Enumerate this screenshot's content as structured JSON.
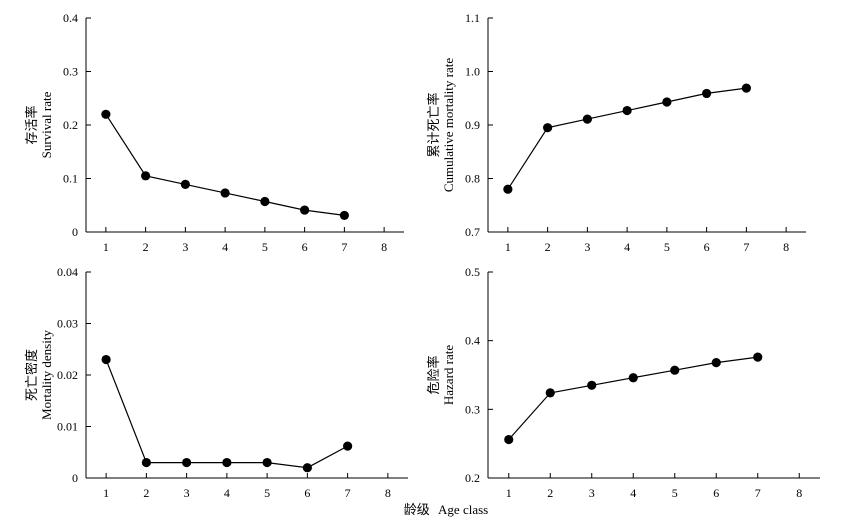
{
  "xlabel": {
    "cn": "龄级",
    "en": "Age class"
  },
  "chart_data": [
    {
      "type": "line",
      "ylabel_cn": "存活率",
      "ylabel_en": "Survival rate",
      "x": [
        1,
        2,
        3,
        4,
        5,
        6,
        7
      ],
      "values": [
        0.22,
        0.105,
        0.089,
        0.073,
        0.057,
        0.041,
        0.031
      ],
      "xlim": [
        0.5,
        8.5
      ],
      "xticks": [
        1,
        2,
        3,
        4,
        5,
        6,
        7,
        8
      ],
      "ylim": [
        0,
        0.4
      ],
      "yticks": [
        0,
        0.1,
        0.2,
        0.3,
        0.4
      ],
      "ytick_labels": [
        "0",
        "0.1",
        "0.2",
        "0.3",
        "0.4"
      ]
    },
    {
      "type": "line",
      "ylabel_cn": "累计死亡率",
      "ylabel_en": "Cumulative mortality rate",
      "x": [
        1,
        2,
        3,
        4,
        5,
        6,
        7
      ],
      "values": [
        0.78,
        0.895,
        0.911,
        0.927,
        0.943,
        0.959,
        0.969
      ],
      "xlim": [
        0.5,
        8.5
      ],
      "xticks": [
        1,
        2,
        3,
        4,
        5,
        6,
        7,
        8
      ],
      "ylim": [
        0.7,
        1.1
      ],
      "yticks": [
        0.7,
        0.8,
        0.9,
        1.0,
        1.1
      ],
      "ytick_labels": [
        "0.7",
        "0.8",
        "0.9",
        "1.0",
        "1.1"
      ]
    },
    {
      "type": "line",
      "ylabel_cn": "死亡密度",
      "ylabel_en": "Mortality density",
      "x": [
        1,
        2,
        3,
        4,
        5,
        6,
        7
      ],
      "values": [
        0.023,
        0.003,
        0.003,
        0.003,
        0.003,
        0.002,
        0.0062
      ],
      "xlim": [
        0.5,
        8.5
      ],
      "xticks": [
        1,
        2,
        3,
        4,
        5,
        6,
        7,
        8
      ],
      "ylim": [
        0,
        0.04
      ],
      "yticks": [
        0,
        0.01,
        0.02,
        0.03,
        0.04
      ],
      "ytick_labels": [
        "0",
        "0.01",
        "0.02",
        "0.03",
        "0.04"
      ]
    },
    {
      "type": "line",
      "ylabel_cn": "危险率",
      "ylabel_en": "Hazard rate",
      "x": [
        1,
        2,
        3,
        4,
        5,
        6,
        7
      ],
      "values": [
        0.256,
        0.324,
        0.335,
        0.346,
        0.357,
        0.368,
        0.376
      ],
      "xlim": [
        0.5,
        8.5
      ],
      "xticks": [
        1,
        2,
        3,
        4,
        5,
        6,
        7,
        8
      ],
      "ylim": [
        0.2,
        0.5
      ],
      "yticks": [
        0.2,
        0.3,
        0.4,
        0.5
      ],
      "ytick_labels": [
        "0.2",
        "0.3",
        "0.4",
        "0.5"
      ]
    }
  ]
}
